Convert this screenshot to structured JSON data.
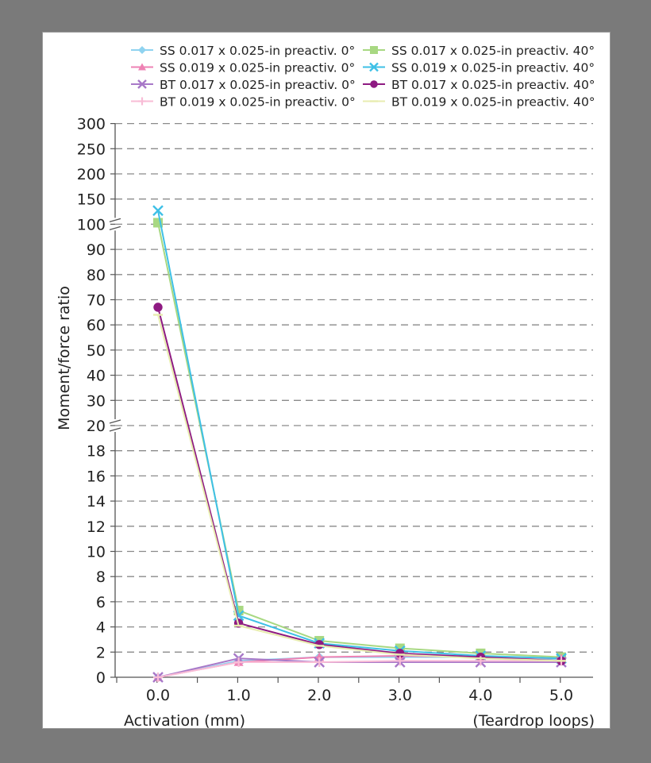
{
  "chart_data": {
    "type": "line",
    "title": "",
    "xlabel": "Activation (mm)",
    "xlabel_right": "(Teardrop loops)",
    "ylabel": "Moment/force ratio",
    "categories": [
      "0.0",
      "1.0",
      "2.0",
      "3.0",
      "4.0",
      "5.0"
    ],
    "y_ticks": [
      "0",
      "2",
      "4",
      "6",
      "8",
      "10",
      "12",
      "14",
      "16",
      "18",
      "20",
      "30",
      "40",
      "50",
      "60",
      "70",
      "80",
      "90",
      "100",
      "150",
      "200",
      "250",
      "300"
    ],
    "y_scale": "broken: 0–20 step 2, 20–100 step 10, 100–300 step 50",
    "grid": true,
    "legend_position": "top",
    "series": [
      {
        "name": "SS 0.017 x 0.025-in preactiv. 0°",
        "color": "#8fd3f0",
        "marker": "diamond",
        "values": [
          0,
          1.3,
          1.6,
          1.6,
          1.6,
          1.4
        ]
      },
      {
        "name": "SS 0.017 x 0.025-in preactiv. 40°",
        "color": "#a8d882",
        "marker": "square",
        "values": [
          103,
          5.3,
          2.9,
          2.3,
          1.9,
          1.6
        ]
      },
      {
        "name": "SS 0.019 x 0.025-in preactiv. 0°",
        "color": "#ee82b4",
        "marker": "triangle",
        "values": [
          0,
          1.2,
          1.6,
          1.7,
          1.6,
          1.5
        ]
      },
      {
        "name": "SS 0.019 x 0.025-in preactiv. 40°",
        "color": "#3ec0e6",
        "marker": "x",
        "values": [
          127,
          4.9,
          2.7,
          2.1,
          1.7,
          1.5
        ]
      },
      {
        "name": "BT 0.017 x 0.025-in preactiv. 0°",
        "color": "#a878c8",
        "marker": "x",
        "values": [
          0,
          1.5,
          1.2,
          1.2,
          1.2,
          1.2
        ]
      },
      {
        "name": "BT 0.017 x 0.025-in preactiv. 40°",
        "color": "#8e1a82",
        "marker": "circle",
        "values": [
          67,
          4.3,
          2.6,
          1.9,
          1.6,
          1.3
        ]
      },
      {
        "name": "BT 0.019 x 0.025-in preactiv. 0°",
        "color": "#f8bcd6",
        "marker": "plus",
        "values": [
          0,
          1.2,
          1.2,
          1.3,
          1.3,
          1.3
        ]
      },
      {
        "name": "BT 0.019 x 0.025-in preactiv. 40°",
        "color": "#e8ecb0",
        "marker": "line",
        "values": [
          64,
          4.1,
          2.5,
          1.8,
          1.5,
          1.3
        ]
      }
    ]
  }
}
